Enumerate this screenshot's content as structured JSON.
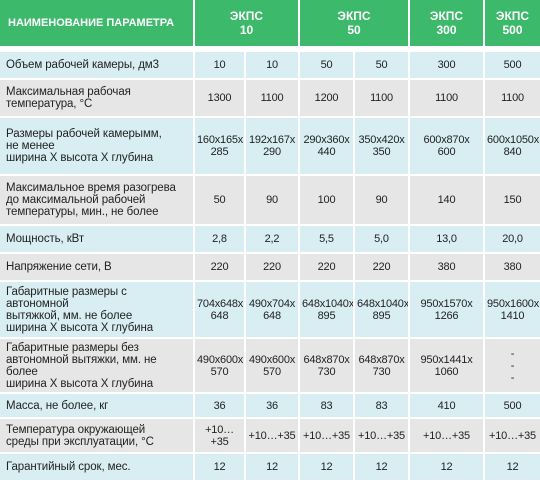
{
  "header": {
    "param": "НАИМЕНОВАНИЕ ПАРАМЕТРА",
    "models": [
      "ЭКПС\n10",
      "ЭКПС\n50",
      "ЭКПС\n300",
      "ЭКПС\n500"
    ]
  },
  "rows": [
    [
      "Объем рабочей камеры, дм3",
      "10",
      "10",
      "50",
      "50",
      "300",
      "500"
    ],
    [
      "Максимальная рабочая\nтемпература, °С",
      "1300",
      "1100",
      "1200",
      "1100",
      "1100",
      "1100"
    ],
    [
      "Размеры рабочей камерымм,\nне менее\nширина Х высота Х глубина",
      "160x165x\n285",
      "192x167x\n290",
      "290x360x\n440",
      "350x420x\n350",
      "600x870x\n600",
      "600x1050x\n840"
    ],
    [
      "Максимальное время разогрева\nдо максимальной рабочей\nтемпературы, мин., не более",
      "50",
      "90",
      "100",
      "90",
      "140",
      "150"
    ],
    [
      "Мощность, кВт",
      "2,8",
      "2,2",
      "5,5",
      "5,0",
      "13,0",
      "20,0"
    ],
    [
      "Напряжение сети, В",
      "220",
      "220",
      "220",
      "220",
      "380",
      "380"
    ],
    [
      "Габаритные размеры с автономной\nвытяжкой, мм. не более\nширина Х высота Х глубина",
      "704x648x\n648",
      "490x704x\n648",
      "648x1040x\n895",
      "648x1040x\n895",
      "950x1570x\n1266",
      "950x1600x\n1410"
    ],
    [
      "Габаритные размеры без\nавтономной вытяжки, мм. не более\nширина Х высота Х глубина",
      "490x600x\n570",
      "490x600x\n570",
      "648x870x\n730",
      "648x870x\n730",
      "950x1441x\n1060",
      "-\n-\n-"
    ],
    [
      "Масса, не более, кг",
      "36",
      "36",
      "83",
      "83",
      "410",
      "500"
    ],
    [
      "Температура окружающей\nсреды при  эксплуатации, °С",
      "+10…+35",
      "+10…+35",
      "+10…+35",
      "+10…+35",
      "+10…+35",
      "+10…+35"
    ],
    [
      "Гарантийный срок, мес.",
      "12",
      "12",
      "12",
      "12",
      "12",
      "12"
    ]
  ]
}
